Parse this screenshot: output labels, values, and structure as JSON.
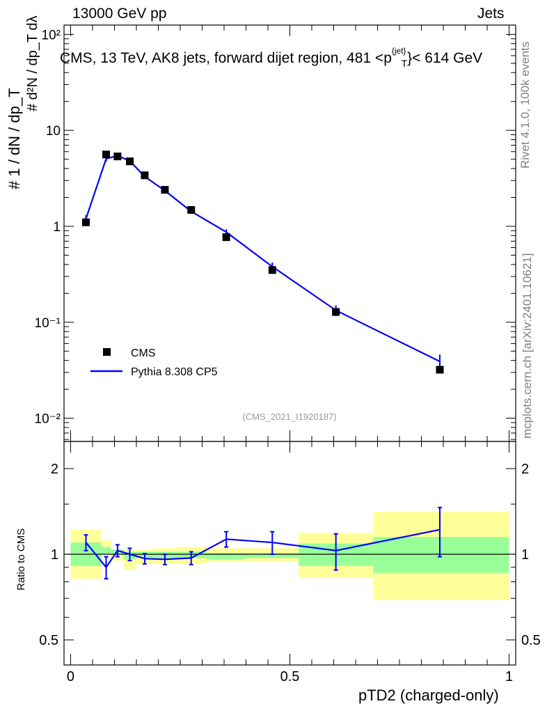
{
  "header": {
    "left": "13000 GeV pp",
    "right": "Jets"
  },
  "side": {
    "rivet": "Rivet 4.1.0,  100k events",
    "mcplots": "mcplots.cern.ch [arXiv:2401.10621]"
  },
  "chart_data": [
    {
      "type": "line",
      "title_parts": {
        "before": "CMS, 13 TeV, AK8 jets, forward dijet region, 481 <p",
        "sup": "{jet}",
        "sub": "T",
        "after": "}< 614 GeV"
      },
      "ylabel_parts": {
        "main": "# 1 / dN / dp_T",
        "sub": "# d²N / dp_T dλ"
      },
      "yscale": "log",
      "ylim": [
        0.007,
        140
      ],
      "yticks": [
        "10⁻²",
        "10⁻¹",
        "1",
        "10",
        "10²"
      ],
      "analysis_tag": "(CMS_2021_I1920187)",
      "legend": {
        "placement": "bottom-left",
        "entries": [
          "CMS",
          "Pythia 8.308 CP5"
        ]
      },
      "series": [
        {
          "name": "CMS",
          "style": "markers",
          "color": "#000000",
          "x": [
            0.035,
            0.081,
            0.107,
            0.135,
            0.169,
            0.215,
            0.275,
            0.355,
            0.46,
            0.605,
            0.842
          ],
          "y": [
            1.1,
            5.6,
            5.35,
            4.75,
            3.4,
            2.4,
            1.48,
            0.77,
            0.35,
            0.128,
            0.032
          ]
        },
        {
          "name": "Pythia 8.308 CP5",
          "style": "line",
          "color": "#0000ff",
          "x": [
            0.035,
            0.081,
            0.107,
            0.135,
            0.169,
            0.215,
            0.275,
            0.355,
            0.46,
            0.605,
            0.842
          ],
          "y": [
            1.2,
            5.05,
            5.45,
            4.8,
            3.3,
            2.35,
            1.43,
            0.87,
            0.38,
            0.133,
            0.039
          ],
          "err": [
            0.11,
            0.35,
            0.25,
            0.2,
            0.15,
            0.11,
            0.08,
            0.06,
            0.04,
            0.017,
            0.007
          ]
        }
      ]
    },
    {
      "type": "line",
      "ylabel": "Ratio to CMS",
      "xlabel": "pTD2 (charged-only)",
      "yscale": "log",
      "ylim": [
        0.4,
        2.5
      ],
      "yticks": [
        "0.5",
        "1",
        "2"
      ],
      "xlim": [
        -0.015,
        1.015
      ],
      "xticks": [
        "0",
        "0.5",
        "1"
      ],
      "bands": {
        "edges": [
          0,
          0.07,
          0.092,
          0.122,
          0.148,
          0.19,
          0.24,
          0.31,
          0.4,
          0.52,
          0.69,
          1.0
        ],
        "green_low": [
          0.91,
          1.0,
          1.0,
          0.96,
          0.97,
          0.97,
          0.97,
          0.96,
          0.97,
          0.91,
          0.86
        ],
        "green_high": [
          1.1,
          1.06,
          1.04,
          1.02,
          1.02,
          1.02,
          1.02,
          1.01,
          1.01,
          1.09,
          1.15
        ],
        "yellow_low": [
          0.82,
          1.0,
          0.95,
          0.88,
          0.93,
          0.93,
          0.93,
          0.94,
          0.94,
          0.83,
          0.69
        ],
        "yellow_high": [
          1.22,
          1.12,
          1.04,
          1.04,
          1.04,
          1.05,
          1.06,
          1.05,
          1.05,
          1.19,
          1.41
        ]
      },
      "series": [
        {
          "name": "Pythia 8.308 CP5",
          "color": "#0000ff",
          "x": [
            0.035,
            0.081,
            0.107,
            0.135,
            0.169,
            0.215,
            0.275,
            0.355,
            0.46,
            0.605,
            0.842
          ],
          "y": [
            1.1,
            0.9,
            1.03,
            1.0,
            0.965,
            0.96,
            0.97,
            1.13,
            1.1,
            1.03,
            1.22
          ],
          "err": [
            0.07,
            0.08,
            0.05,
            0.05,
            0.04,
            0.04,
            0.05,
            0.07,
            0.1,
            0.15,
            0.24
          ]
        }
      ]
    }
  ]
}
